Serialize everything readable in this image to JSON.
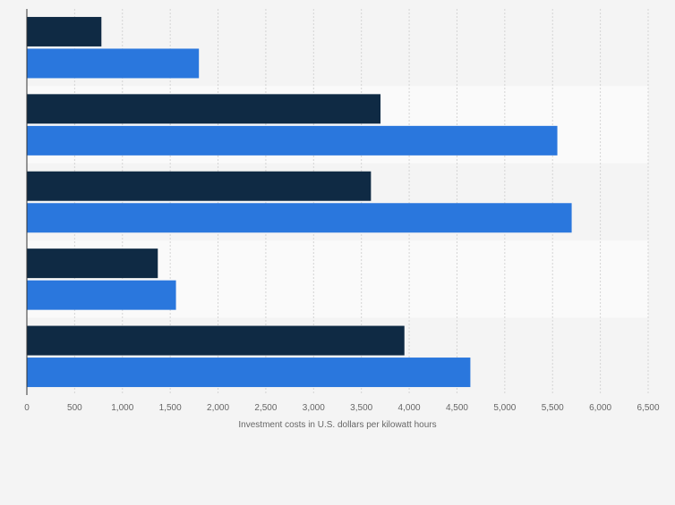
{
  "chart_data": {
    "type": "bar",
    "orientation": "horizontal",
    "categories": [
      "",
      "",
      "",
      "",
      ""
    ],
    "series": [
      {
        "name": "",
        "color": "#0f2a44",
        "values": [
          780,
          3700,
          3600,
          1370,
          3950
        ]
      },
      {
        "name": "",
        "color": "#2a77dd",
        "values": [
          1800,
          5550,
          5700,
          1560,
          4640
        ]
      }
    ],
    "xlabel": "Investment costs in U.S. dollars per kilowatt hours",
    "xlim": [
      0,
      6500
    ],
    "xticks": [
      0,
      500,
      1000,
      1500,
      2000,
      2500,
      3000,
      3500,
      4000,
      4500,
      5000,
      5500,
      6000,
      6500
    ],
    "xtick_labels": [
      "0",
      "500",
      "1,000",
      "1,500",
      "2,000",
      "2,500",
      "3,000",
      "3,500",
      "4,000",
      "4,500",
      "5,000",
      "5,500",
      "6,000",
      "6,500"
    ],
    "grid": true,
    "legend": "none",
    "band_colors": [
      "#f4f4f4",
      "#fafafa"
    ]
  }
}
